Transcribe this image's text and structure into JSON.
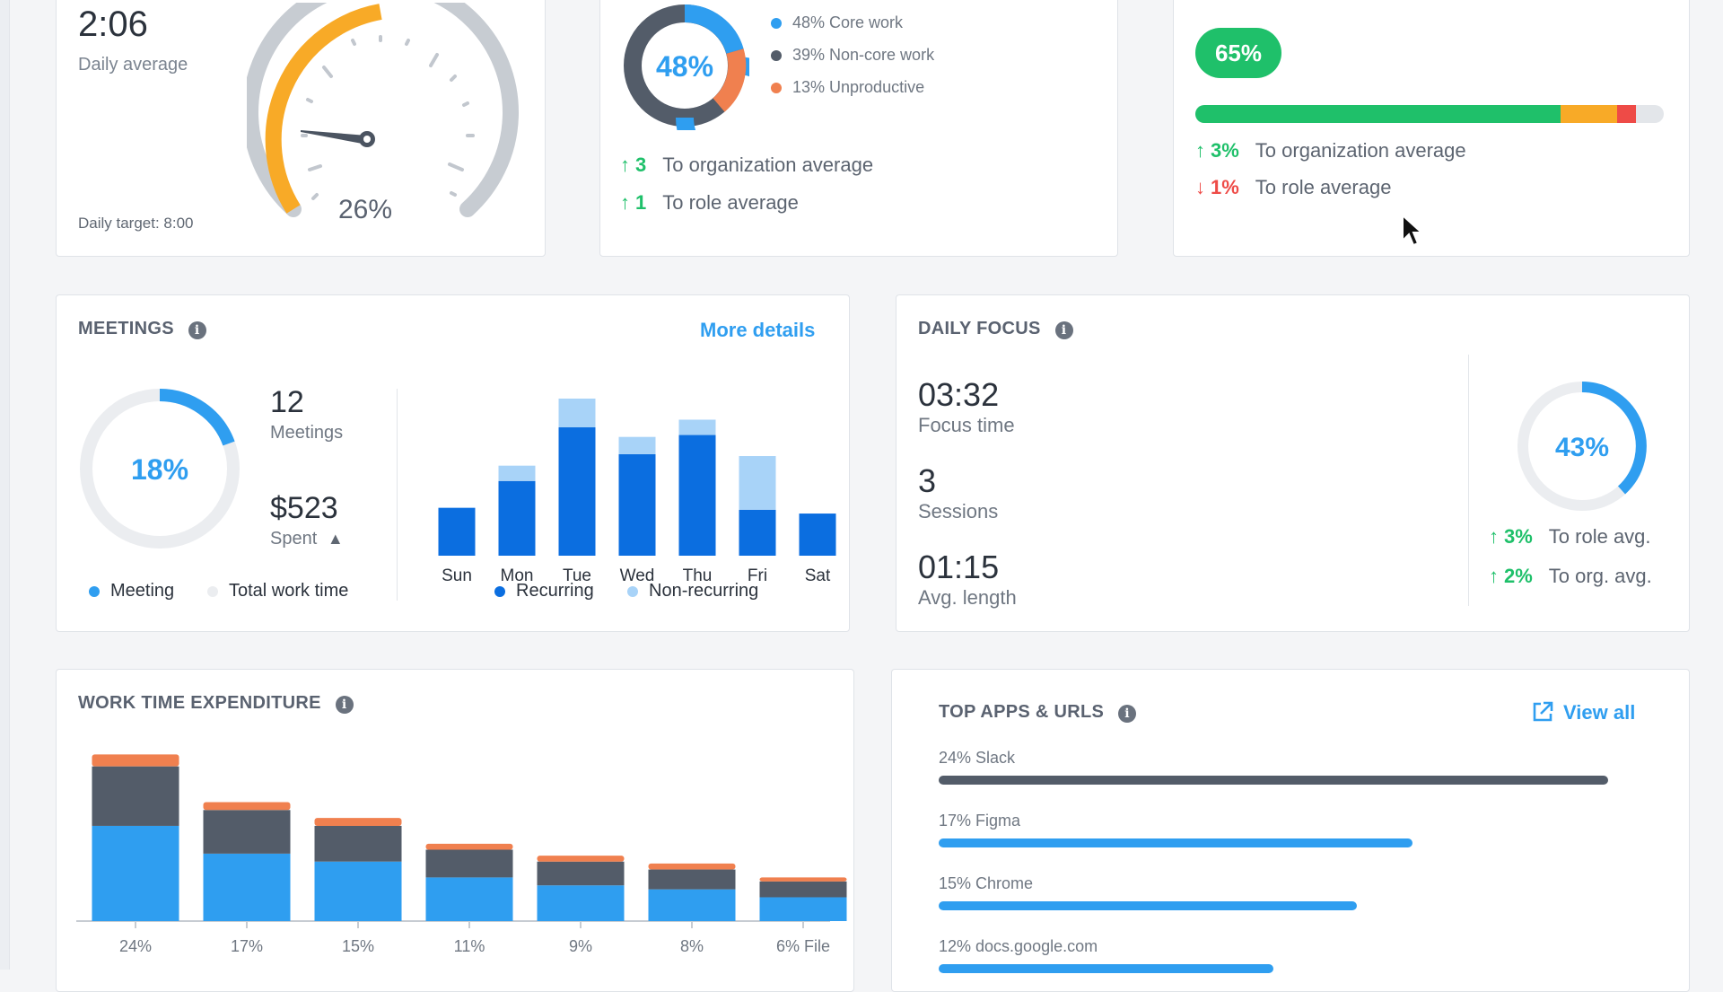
{
  "work_hours": {
    "value": "2:06",
    "label": "Daily average",
    "target": "Daily target: 8:00",
    "gauge_percent_label": "26%",
    "gauge_fraction": 0.26
  },
  "activity": {
    "donut_label": "48%",
    "legend": [
      {
        "label": "48% Core work",
        "value": 48,
        "color": "#2f9ef0"
      },
      {
        "label": "39% Non-core work",
        "value": 39,
        "color": "#535c69"
      },
      {
        "label": "13% Unproductive",
        "value": 13,
        "color": "#f0804f"
      }
    ],
    "comparisons": [
      {
        "direction": "up",
        "value": "3",
        "label": "To organization average"
      },
      {
        "direction": "up",
        "value": "1",
        "label": "To role average"
      }
    ]
  },
  "utilization": {
    "badge": "65%",
    "bar": {
      "green": 0.78,
      "orange": 0.12,
      "red": 0.04
    },
    "comparisons": [
      {
        "direction": "up",
        "value": "3%",
        "label": "To organization average"
      },
      {
        "direction": "down",
        "value": "1%",
        "label": "To role average"
      }
    ]
  },
  "meetings": {
    "title": "MEETINGS",
    "more_details": "More details",
    "donut_label": "18%",
    "donut_fraction": 0.18,
    "count": "12",
    "count_label": "Meetings",
    "spent": "$523",
    "spent_label": "Spent",
    "legend_meeting": "Meeting",
    "legend_total": "Total work time",
    "legend_recurring": "Recurring",
    "legend_nonrecurring": "Non-recurring"
  },
  "daily_focus": {
    "title": "DAILY FOCUS",
    "focus_time": "03:32",
    "focus_time_label": "Focus time",
    "sessions": "3",
    "sessions_label": "Sessions",
    "avg_length": "01:15",
    "avg_length_label": "Avg. length",
    "donut_label": "43%",
    "donut_fraction": 0.43,
    "comparisons": [
      {
        "direction": "up",
        "value": "3%",
        "label": "To role avg."
      },
      {
        "direction": "up",
        "value": "2%",
        "label": "To org. avg."
      }
    ]
  },
  "work_time_expenditure": {
    "title": "WORK TIME EXPENDITURE",
    "tick_labels": [
      "24%",
      "17%",
      "15%",
      "11%",
      "9%",
      "8%",
      "6% File"
    ]
  },
  "top_apps": {
    "title": "TOP APPS & URLS",
    "view_all": "View all",
    "items": [
      {
        "label": "24% Slack",
        "value": 24,
        "color": "#535c69"
      },
      {
        "label": "17% Figma",
        "value": 17,
        "color": "#2f9ef0"
      },
      {
        "label": "15% Chrome",
        "value": 15,
        "color": "#2f9ef0"
      },
      {
        "label": "12% docs.google.com",
        "value": 12,
        "color": "#2f9ef0"
      }
    ]
  },
  "colors": {
    "blue": "#2f9ef0",
    "dark_blue": "#0b6ee0",
    "light_blue": "#a8d3f8",
    "slate": "#535c69",
    "orange": "#f0804f",
    "yellow": "#f8aa27",
    "green": "#1fc06a",
    "red": "#ee4b47"
  },
  "chart_data": [
    {
      "type": "bar",
      "title": "",
      "categories": [
        "Sun",
        "Mon",
        "Tue",
        "Wed",
        "Thu",
        "Fri",
        "Sat"
      ],
      "series": [
        {
          "name": "Recurring",
          "values": [
            2.5,
            3.9,
            6.7,
            5.3,
            6.3,
            2.4,
            2.2
          ]
        },
        {
          "name": "Non-recurring",
          "values": [
            0,
            0.8,
            1.5,
            0.9,
            0.8,
            2.8,
            0
          ]
        }
      ],
      "stacked": true
    },
    {
      "type": "bar",
      "title": "",
      "categories": [
        "24%",
        "17%",
        "15%",
        "11%",
        "9%",
        "8%",
        "6% File"
      ],
      "series": [
        {
          "values": [
            24,
            17,
            15,
            11,
            9,
            8,
            6
          ]
        },
        {
          "values": [
            15,
            11,
            9,
            7,
            6,
            5,
            4
          ]
        },
        {
          "values": [
            3,
            2,
            2,
            1.5,
            1.5,
            1.5,
            1
          ]
        }
      ],
      "stacked": true
    }
  ]
}
